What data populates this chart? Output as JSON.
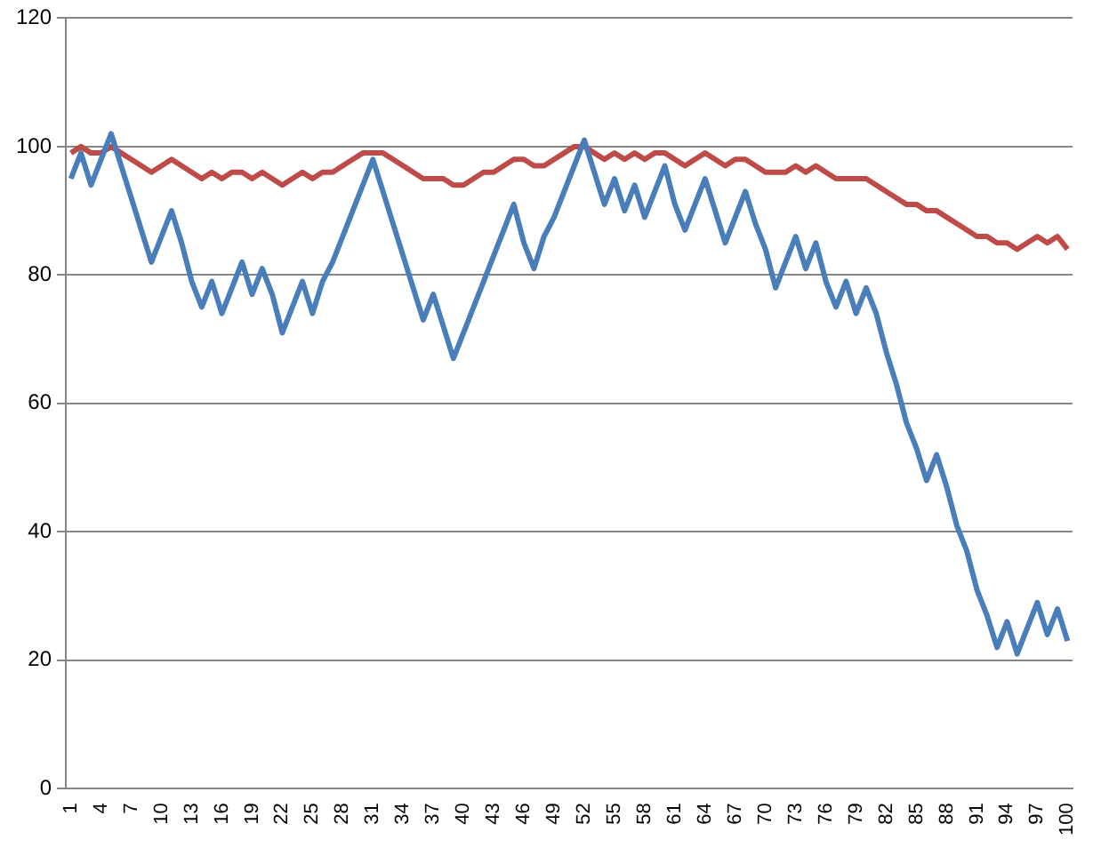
{
  "chart_data": {
    "type": "line",
    "categories": [
      "1",
      null,
      null,
      "4",
      null,
      null,
      "7",
      null,
      null,
      "10",
      null,
      null,
      "13",
      null,
      null,
      "16",
      null,
      null,
      "19",
      null,
      null,
      "22",
      null,
      null,
      "25",
      null,
      null,
      "28",
      null,
      null,
      "31",
      null,
      null,
      "34",
      null,
      null,
      "37",
      null,
      null,
      "40",
      null,
      null,
      "43",
      null,
      null,
      "46",
      null,
      null,
      "49",
      null,
      null,
      "52",
      null,
      null,
      "55",
      null,
      null,
      "58",
      null,
      null,
      "61",
      null,
      null,
      "64",
      null,
      null,
      "67",
      null,
      null,
      "70",
      null,
      null,
      "73",
      null,
      null,
      "76",
      null,
      null,
      "79",
      null,
      null,
      "82",
      null,
      null,
      "85",
      null,
      null,
      "88",
      null,
      null,
      "91",
      null,
      null,
      "94",
      null,
      null,
      "97",
      null,
      null,
      "100"
    ],
    "series": [
      {
        "color": "#4a7ebb",
        "values": [
          95,
          99,
          94,
          98,
          102,
          97,
          92,
          87,
          82,
          86,
          90,
          85,
          79,
          75,
          79,
          74,
          78,
          82,
          77,
          81,
          77,
          71,
          75,
          79,
          74,
          79,
          82,
          86,
          90,
          94,
          98,
          93,
          88,
          83,
          78,
          73,
          77,
          72,
          67,
          71,
          75,
          79,
          83,
          87,
          91,
          85,
          81,
          86,
          89,
          93,
          97,
          101,
          96,
          91,
          95,
          90,
          94,
          89,
          93,
          97,
          91,
          87,
          91,
          95,
          90,
          85,
          89,
          93,
          88,
          84,
          78,
          82,
          86,
          81,
          85,
          79,
          75,
          79,
          74,
          78,
          74,
          68,
          63,
          57,
          53,
          48,
          52,
          47,
          41,
          37,
          31,
          27,
          22,
          26,
          21,
          25,
          29,
          24,
          28,
          23
        ]
      },
      {
        "color": "#be4b48",
        "values": [
          99,
          100,
          99,
          99,
          100,
          99,
          98,
          97,
          96,
          97,
          98,
          97,
          96,
          95,
          96,
          95,
          96,
          96,
          95,
          96,
          95,
          94,
          95,
          96,
          95,
          96,
          96,
          97,
          98,
          99,
          99,
          99,
          98,
          97,
          96,
          95,
          95,
          95,
          94,
          94,
          95,
          96,
          96,
          97,
          98,
          98,
          97,
          97,
          98,
          99,
          100,
          100,
          99,
          98,
          99,
          98,
          99,
          98,
          99,
          99,
          98,
          97,
          98,
          99,
          98,
          97,
          98,
          98,
          97,
          96,
          96,
          96,
          97,
          96,
          97,
          96,
          95,
          95,
          95,
          95,
          94,
          93,
          92,
          91,
          91,
          90,
          90,
          89,
          88,
          87,
          86,
          86,
          85,
          85,
          84,
          85,
          86,
          85,
          86,
          84
        ]
      }
    ],
    "ylim": [
      0,
      120
    ],
    "yticks": [
      0,
      20,
      40,
      60,
      80,
      100,
      120
    ],
    "grid": "y",
    "legend": false,
    "marker": "none",
    "line_style": "solid"
  }
}
